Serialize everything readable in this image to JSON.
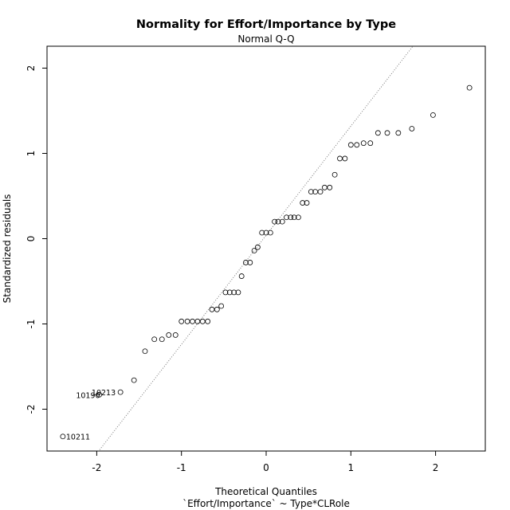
{
  "chart_data": {
    "type": "scatter",
    "title": "Normality for Effort/Importance by Type",
    "subtitle": "Normal Q-Q",
    "xlabel": "Theoretical Quantiles",
    "xlabel_sub": "`Effort/Importance` ~ Type*CLRole",
    "ylabel": "Standardized residuals",
    "xlim": [
      -2.45,
      2.45
    ],
    "ylim": [
      -2.5,
      2.25
    ],
    "xticks": [
      -2,
      -1,
      0,
      1,
      2
    ],
    "yticks": [
      -2,
      -1,
      0,
      1,
      2
    ],
    "xtick_labels": [
      "-2",
      "-1",
      "0",
      "1",
      "2"
    ],
    "ytick_labels": [
      "-2",
      "-1",
      "0",
      "1",
      "2"
    ],
    "reference_line": {
      "slope": 1.28,
      "intercept": 0.04,
      "style": "dotted"
    },
    "grid": false,
    "points": [
      {
        "x": -2.4,
        "y": -2.32
      },
      {
        "x": -1.97,
        "y": -1.83
      },
      {
        "x": -1.72,
        "y": -1.8
      },
      {
        "x": -1.56,
        "y": -1.66
      },
      {
        "x": -1.43,
        "y": -1.32
      },
      {
        "x": -1.32,
        "y": -1.18
      },
      {
        "x": -1.23,
        "y": -1.18
      },
      {
        "x": -1.15,
        "y": -1.13
      },
      {
        "x": -1.07,
        "y": -1.13
      },
      {
        "x": -1.0,
        "y": -0.97
      },
      {
        "x": -0.93,
        "y": -0.97
      },
      {
        "x": -0.87,
        "y": -0.97
      },
      {
        "x": -0.81,
        "y": -0.97
      },
      {
        "x": -0.75,
        "y": -0.97
      },
      {
        "x": -0.69,
        "y": -0.97
      },
      {
        "x": -0.64,
        "y": -0.83
      },
      {
        "x": -0.58,
        "y": -0.83
      },
      {
        "x": -0.53,
        "y": -0.79
      },
      {
        "x": -0.48,
        "y": -0.63
      },
      {
        "x": -0.43,
        "y": -0.63
      },
      {
        "x": -0.38,
        "y": -0.63
      },
      {
        "x": -0.33,
        "y": -0.63
      },
      {
        "x": -0.29,
        "y": -0.44
      },
      {
        "x": -0.24,
        "y": -0.28
      },
      {
        "x": -0.19,
        "y": -0.28
      },
      {
        "x": -0.14,
        "y": -0.14
      },
      {
        "x": -0.1,
        "y": -0.1
      },
      {
        "x": -0.05,
        "y": 0.07
      },
      {
        "x": 0.0,
        "y": 0.07
      },
      {
        "x": 0.05,
        "y": 0.07
      },
      {
        "x": 0.1,
        "y": 0.2
      },
      {
        "x": 0.14,
        "y": 0.2
      },
      {
        "x": 0.19,
        "y": 0.2
      },
      {
        "x": 0.24,
        "y": 0.25
      },
      {
        "x": 0.29,
        "y": 0.25
      },
      {
        "x": 0.33,
        "y": 0.25
      },
      {
        "x": 0.38,
        "y": 0.25
      },
      {
        "x": 0.43,
        "y": 0.42
      },
      {
        "x": 0.48,
        "y": 0.42
      },
      {
        "x": 0.53,
        "y": 0.55
      },
      {
        "x": 0.58,
        "y": 0.55
      },
      {
        "x": 0.64,
        "y": 0.55
      },
      {
        "x": 0.69,
        "y": 0.6
      },
      {
        "x": 0.75,
        "y": 0.6
      },
      {
        "x": 0.81,
        "y": 0.75
      },
      {
        "x": 0.87,
        "y": 0.94
      },
      {
        "x": 0.93,
        "y": 0.94
      },
      {
        "x": 1.0,
        "y": 1.1
      },
      {
        "x": 1.07,
        "y": 1.1
      },
      {
        "x": 1.15,
        "y": 1.12
      },
      {
        "x": 1.23,
        "y": 1.12
      },
      {
        "x": 1.32,
        "y": 1.24
      },
      {
        "x": 1.43,
        "y": 1.24
      },
      {
        "x": 1.56,
        "y": 1.24
      },
      {
        "x": 1.72,
        "y": 1.29
      },
      {
        "x": 1.97,
        "y": 1.45
      },
      {
        "x": 2.4,
        "y": 1.77
      }
    ],
    "labeled_points": [
      {
        "label": "10211",
        "x": -2.4,
        "y": -2.32
      },
      {
        "label": "10190",
        "x": -1.97,
        "y": -1.83
      },
      {
        "label": "10213",
        "x": -1.72,
        "y": -1.8
      }
    ]
  }
}
